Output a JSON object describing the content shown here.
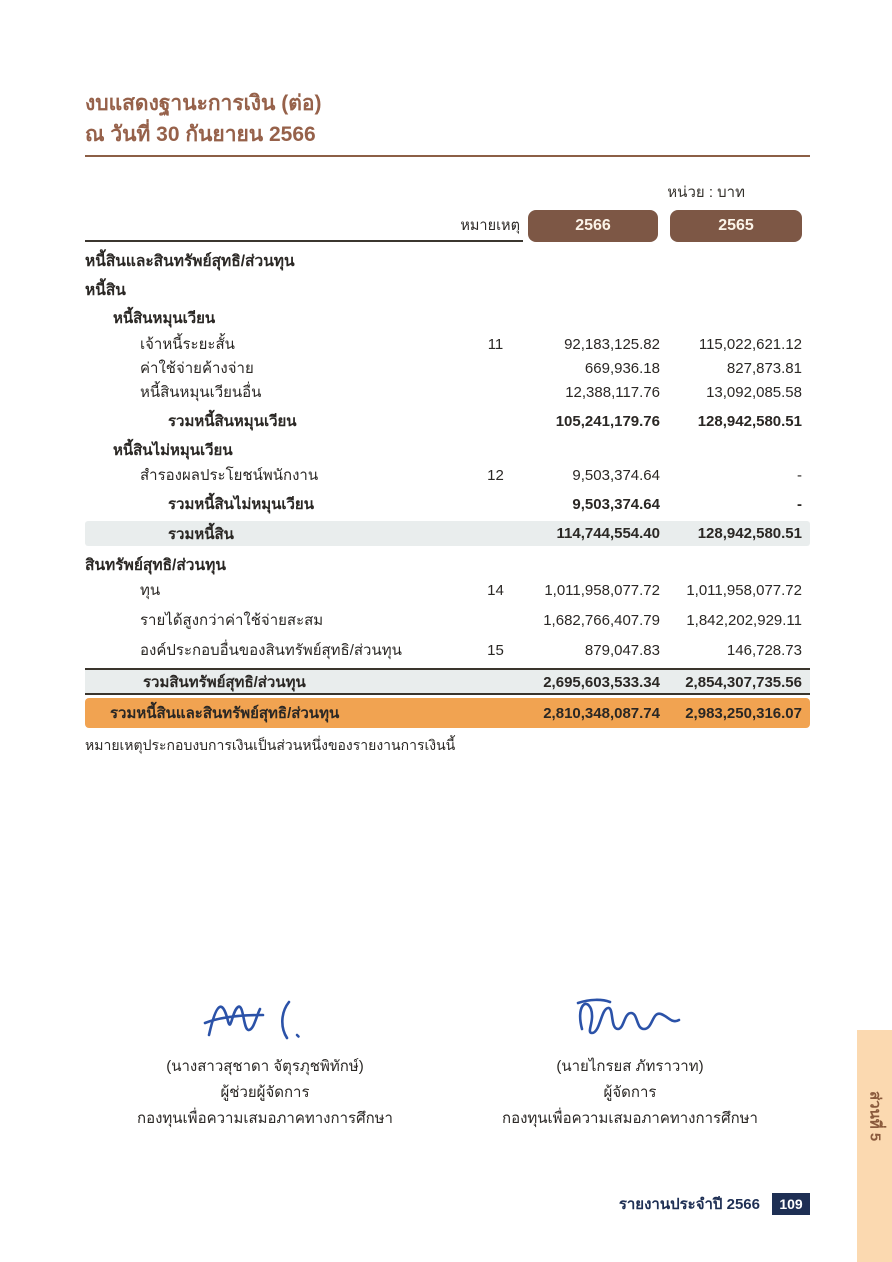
{
  "page": {
    "title_line1": "งบแสดงฐานะการเงิน (ต่อ)",
    "title_line2": "ณ วันที่ 30 กันยายน 2566",
    "unit_label": "หน่วย : บาท",
    "footnote": "หมายเหตุประกอบงบการเงินเป็นส่วนหนึ่งของรายงานการเงินนี้",
    "footer_text": "รายงานประจำปี 2566",
    "page_number": "109",
    "side_tab_label": "ส่วนที่ 5"
  },
  "colors": {
    "title_brown": "#96614a",
    "pill_brown": "#7d5745",
    "row_gray": "#e9eded",
    "grand_total_orange": "#f1a351",
    "footer_navy": "#1e2f54",
    "side_tab_bg": "#fbd9b0",
    "side_tab_text": "#8a5a3c",
    "signature_blue": "#2b52a8"
  },
  "table": {
    "note_header": "หมายเหตุ",
    "year_columns": [
      "2566",
      "2565"
    ],
    "rows": [
      {
        "type": "section",
        "label": "หนี้สินและสินทรัพย์สุทธิ/ส่วนทุน",
        "note": "",
        "y2566": "",
        "y2565": ""
      },
      {
        "type": "section",
        "label": "หนี้สิน",
        "note": "",
        "y2566": "",
        "y2565": ""
      },
      {
        "type": "subsection",
        "label": "หนี้สินหมุนเวียน",
        "note": "",
        "y2566": "",
        "y2565": ""
      },
      {
        "type": "item",
        "label": "เจ้าหนี้ระยะสั้น",
        "note": "11",
        "y2566": "92,183,125.82",
        "y2565": "115,022,621.12"
      },
      {
        "type": "item",
        "label": "ค่าใช้จ่ายค้างจ่าย",
        "note": "",
        "y2566": "669,936.18",
        "y2565": "827,873.81"
      },
      {
        "type": "item",
        "label": "หนี้สินหมุนเวียนอื่น",
        "note": "",
        "y2566": "12,388,117.76",
        "y2565": "13,092,085.58"
      },
      {
        "type": "total",
        "label": "รวมหนี้สินหมุนเวียน",
        "note": "",
        "y2566": "105,241,179.76",
        "y2565": "128,942,580.51"
      },
      {
        "type": "subsection",
        "label": "หนี้สินไม่หมุนเวียน",
        "note": "",
        "y2566": "",
        "y2565": ""
      },
      {
        "type": "item",
        "label": "สำรองผลประโยชน์พนักงาน",
        "note": "12",
        "y2566": "9,503,374.64",
        "y2565": "-"
      },
      {
        "type": "total",
        "label": "รวมหนี้สินไม่หมุนเวียน",
        "note": "",
        "y2566": "9,503,374.64",
        "y2565": "-"
      },
      {
        "type": "total_gray",
        "label": "รวมหนี้สิน",
        "note": "",
        "y2566": "114,744,554.40",
        "y2565": "128,942,580.51"
      },
      {
        "type": "section",
        "label": "สินทรัพย์สุทธิ/ส่วนทุน",
        "note": "",
        "y2566": "",
        "y2565": ""
      },
      {
        "type": "item",
        "label": "ทุน",
        "note": "14",
        "y2566": "1,011,958,077.72",
        "y2565": "1,011,958,077.72"
      },
      {
        "type": "item",
        "label": "รายได้สูงกว่าค่าใช้จ่ายสะสม",
        "note": "",
        "y2566": "1,682,766,407.79",
        "y2565": "1,842,202,929.11"
      },
      {
        "type": "item",
        "label": "องค์ประกอบอื่นของสินทรัพย์สุทธิ/ส่วนทุน",
        "note": "15",
        "y2566": "879,047.83",
        "y2565": "146,728.73"
      },
      {
        "type": "total_gray_top",
        "label": "รวมสินทรัพย์สุทธิ/ส่วนทุน",
        "note": "",
        "y2566": "2,695,603,533.34",
        "y2565": "2,854,307,735.56"
      },
      {
        "type": "grand_total",
        "label": "รวมหนี้สินและสินทรัพย์สุทธิ/ส่วนทุน",
        "note": "",
        "y2566": "2,810,348,087.74",
        "y2565": "2,983,250,316.07"
      }
    ]
  },
  "signatures": [
    {
      "name": "(นางสาวสุชาดา จัตุรภุชพิทักษ์)",
      "title": "ผู้ช่วยผู้จัดการ",
      "org": "กองทุนเพื่อความเสมอภาคทางการศึกษา"
    },
    {
      "name": "(นายไกรยส ภัทราวาท)",
      "title": "ผู้จัดการ",
      "org": "กองทุนเพื่อความเสมอภาคทางการศึกษา"
    }
  ]
}
